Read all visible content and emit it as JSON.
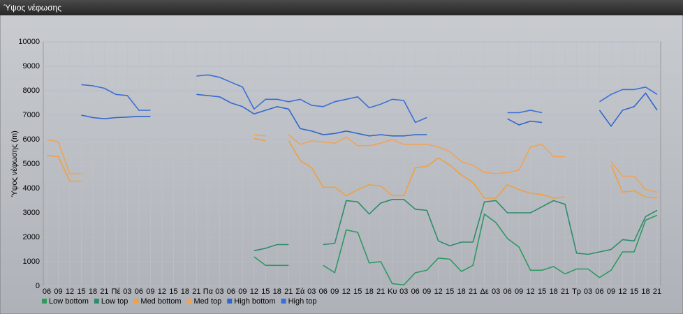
{
  "chart_data": {
    "type": "line",
    "title": "Ύψος νέφωσης",
    "y_label": "Ύψος νέφωσης (m)",
    "categories": [
      "06",
      "09",
      "12",
      "15",
      "18",
      "21",
      "Πέ",
      "03",
      "06",
      "09",
      "12",
      "15",
      "18",
      "21",
      "Πα",
      "03",
      "06",
      "09",
      "12",
      "15",
      "18",
      "21",
      "Σά",
      "03",
      "06",
      "09",
      "12",
      "15",
      "18",
      "21",
      "Κυ",
      "03",
      "06",
      "09",
      "12",
      "15",
      "18",
      "21",
      "Δε",
      "03",
      "06",
      "09",
      "12",
      "15",
      "18",
      "21",
      "Τρ",
      "03",
      "06",
      "09",
      "12",
      "15",
      "18",
      "21"
    ],
    "ylim": [
      0,
      10000
    ],
    "yticks": [
      0,
      1000,
      2000,
      3000,
      4000,
      5000,
      6000,
      7000,
      8000,
      9000,
      10000
    ],
    "grid": true,
    "legend": "bottom",
    "series": [
      {
        "name": "Low bottom",
        "color": "#2f9960",
        "values": [
          null,
          null,
          null,
          null,
          null,
          null,
          null,
          null,
          null,
          null,
          null,
          null,
          null,
          null,
          null,
          null,
          null,
          null,
          1200,
          850,
          850,
          850,
          null,
          null,
          850,
          550,
          2300,
          2200,
          950,
          1000,
          100,
          50,
          550,
          650,
          1150,
          1100,
          600,
          850,
          2950,
          2600,
          1950,
          1600,
          650,
          650,
          800,
          500,
          700,
          700,
          350,
          650,
          1400,
          1400,
          2700,
          2900
        ]
      },
      {
        "name": "Low top",
        "color": "#2e8b6b",
        "values": [
          null,
          null,
          null,
          null,
          null,
          null,
          null,
          null,
          null,
          null,
          null,
          null,
          null,
          null,
          null,
          null,
          null,
          null,
          1450,
          1550,
          1700,
          1700,
          null,
          null,
          1700,
          1750,
          3500,
          3450,
          2950,
          3400,
          3550,
          3550,
          3150,
          3100,
          1850,
          1650,
          1800,
          1800,
          3450,
          3500,
          3000,
          3000,
          3000,
          3250,
          3500,
          3350,
          1350,
          1300,
          1400,
          1500,
          1900,
          1850,
          2850,
          3100
        ]
      },
      {
        "name": "Med bottom",
        "color": "#f0a040",
        "values": [
          5350,
          5300,
          4300,
          4300,
          null,
          null,
          null,
          null,
          null,
          null,
          null,
          null,
          null,
          null,
          null,
          null,
          null,
          null,
          6050,
          5950,
          null,
          5950,
          5150,
          4850,
          4050,
          4050,
          3700,
          3950,
          4150,
          4100,
          3700,
          3700,
          4850,
          4900,
          5250,
          4950,
          4550,
          4250,
          3600,
          3600,
          4150,
          3950,
          3800,
          3750,
          3600,
          3650,
          null,
          null,
          null,
          4950,
          3850,
          3900,
          3650,
          3600
        ]
      },
      {
        "name": "Med top",
        "color": "#f2a255",
        "values": [
          6000,
          5900,
          4600,
          4600,
          null,
          null,
          null,
          null,
          null,
          null,
          null,
          null,
          null,
          null,
          null,
          null,
          null,
          null,
          6200,
          6150,
          null,
          6200,
          5800,
          5950,
          5900,
          5850,
          6100,
          5750,
          5750,
          5850,
          6000,
          5800,
          5800,
          5800,
          5700,
          5500,
          5100,
          4950,
          4650,
          4600,
          4650,
          4750,
          5700,
          5800,
          5300,
          5300,
          null,
          null,
          null,
          5100,
          4500,
          4500,
          3950,
          3850
        ]
      },
      {
        "name": "High bottom",
        "color": "#3366cc",
        "values": [
          null,
          null,
          null,
          7000,
          6900,
          6850,
          6900,
          6920,
          6950,
          6950,
          null,
          null,
          null,
          7850,
          7800,
          7750,
          7500,
          7350,
          7050,
          7200,
          7350,
          7250,
          6450,
          6350,
          6200,
          6250,
          6350,
          6250,
          6150,
          6200,
          6150,
          6150,
          6200,
          6200,
          null,
          null,
          null,
          null,
          null,
          null,
          6850,
          6600,
          6750,
          6700,
          null,
          null,
          null,
          null,
          7200,
          6550,
          7200,
          7350,
          7900,
          7200
        ]
      },
      {
        "name": "High top",
        "color": "#3a6ed8",
        "values": [
          null,
          null,
          null,
          8250,
          8200,
          8100,
          7850,
          7800,
          7200,
          7200,
          null,
          null,
          null,
          8600,
          8650,
          8550,
          8350,
          8150,
          7250,
          7650,
          7650,
          7550,
          7650,
          7400,
          7350,
          7550,
          7650,
          7750,
          7300,
          7450,
          7650,
          7600,
          6700,
          6900,
          null,
          null,
          null,
          null,
          null,
          null,
          7100,
          7100,
          7200,
          7100,
          null,
          null,
          null,
          null,
          7550,
          7850,
          8050,
          8050,
          8150,
          7850
        ]
      }
    ]
  }
}
